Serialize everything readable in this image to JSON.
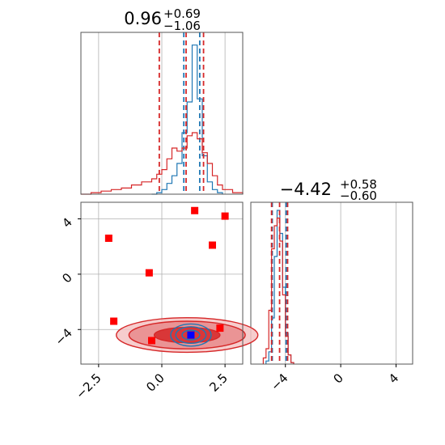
{
  "chart_data": [
    {
      "type": "histogram",
      "panel": "marginal-param-1",
      "title": {
        "median": "0.96",
        "plus": "+0.69",
        "minus": "−1.06"
      },
      "grid": true,
      "xlim": [
        -3.2,
        3.2
      ],
      "series": [
        {
          "name": "",
          "color": "#1f77b4",
          "bin_edges": [
            -0.4,
            -0.2,
            0.0,
            0.2,
            0.4,
            0.6,
            0.8,
            1.0,
            1.2,
            1.4,
            1.6,
            1.8,
            2.0,
            2.2,
            2.4
          ],
          "heights": [
            0.0,
            0.01,
            0.03,
            0.07,
            0.12,
            0.2,
            0.4,
            0.6,
            0.97,
            0.62,
            0.25,
            0.08,
            0.03,
            0.01
          ],
          "quantile_lines": [
            0.87,
            1.5
          ]
        },
        {
          "name": "",
          "color": "#d62728",
          "bin_edges": [
            -3.2,
            -2.8,
            -2.4,
            -2.0,
            -1.6,
            -1.2,
            -0.8,
            -0.4,
            -0.2,
            0.0,
            0.2,
            0.4,
            0.6,
            0.8,
            1.0,
            1.2,
            1.4,
            1.6,
            1.8,
            2.0,
            2.2,
            2.4,
            2.8,
            3.2
          ],
          "heights": [
            0.0,
            0.01,
            0.02,
            0.03,
            0.04,
            0.06,
            0.08,
            0.1,
            0.13,
            0.16,
            0.23,
            0.3,
            0.28,
            0.3,
            0.38,
            0.4,
            0.36,
            0.27,
            0.2,
            0.12,
            0.06,
            0.03,
            0.01
          ],
          "quantile_lines": [
            -0.1,
            0.96,
            1.65
          ]
        }
      ]
    },
    {
      "type": "histogram",
      "panel": "marginal-param-2",
      "title": {
        "median": "−4.42",
        "plus": "+0.58",
        "minus": "−0.60"
      },
      "grid": true,
      "xlim": [
        -6.5,
        5.2
      ],
      "series": [
        {
          "name": "",
          "color": "#1f77b4",
          "bin_edges": [
            -5.4,
            -5.2,
            -5.0,
            -4.8,
            -4.6,
            -4.4,
            -4.2,
            -4.0,
            -3.8,
            -3.6,
            -3.4
          ],
          "heights": [
            0.02,
            0.08,
            0.3,
            0.7,
            1.0,
            0.85,
            0.5,
            0.2,
            0.06,
            0.01
          ],
          "quantile_lines": [
            -4.95,
            -3.95
          ]
        },
        {
          "name": "",
          "color": "#d62728",
          "bin_edges": [
            -5.6,
            -5.4,
            -5.2,
            -5.0,
            -4.8,
            -4.6,
            -4.4,
            -4.2,
            -4.0,
            -3.8,
            -3.6,
            -3.4
          ],
          "heights": [
            0.04,
            0.1,
            0.35,
            0.75,
            0.9,
            0.95,
            0.8,
            0.45,
            0.18,
            0.06,
            0.01
          ],
          "quantile_lines": [
            -5.0,
            -4.42,
            -3.84
          ]
        }
      ]
    },
    {
      "type": "scatter",
      "panel": "joint",
      "grid": true,
      "xlim": [
        -3.2,
        3.2
      ],
      "ylim": [
        -6.5,
        5.2
      ],
      "xticks": [
        "−2.5",
        "0.0",
        "2.5"
      ],
      "yticks": [
        "−4",
        "0",
        "4"
      ],
      "xtick_values": [
        -2.5,
        0.0,
        2.5
      ],
      "ytick_values": [
        -4,
        0,
        4
      ],
      "series": [
        {
          "name": "",
          "color": "#ff0000",
          "marker": "square",
          "points": [
            [
              -2.1,
              2.6
            ],
            [
              -0.5,
              0.1
            ],
            [
              1.3,
              4.6
            ],
            [
              2.5,
              4.2
            ],
            [
              2.0,
              2.1
            ],
            [
              -1.9,
              -3.4
            ],
            [
              -0.4,
              -4.8
            ],
            [
              2.3,
              -3.9
            ]
          ]
        },
        {
          "name": "",
          "color": "#0000ff",
          "marker": "square",
          "points": [
            [
              1.15,
              -4.4
            ]
          ]
        }
      ],
      "contours": [
        {
          "color": "#d62728",
          "center": [
            1.0,
            -4.4
          ],
          "rx": [
            1.3,
            2.3,
            2.8
          ],
          "ry": [
            0.55,
            1.0,
            1.25
          ]
        },
        {
          "color": "#1f77b4",
          "center": [
            1.15,
            -4.4
          ],
          "rx": [
            0.35,
            0.6,
            0.8
          ],
          "ry": [
            0.35,
            0.6,
            0.8
          ]
        }
      ]
    }
  ]
}
